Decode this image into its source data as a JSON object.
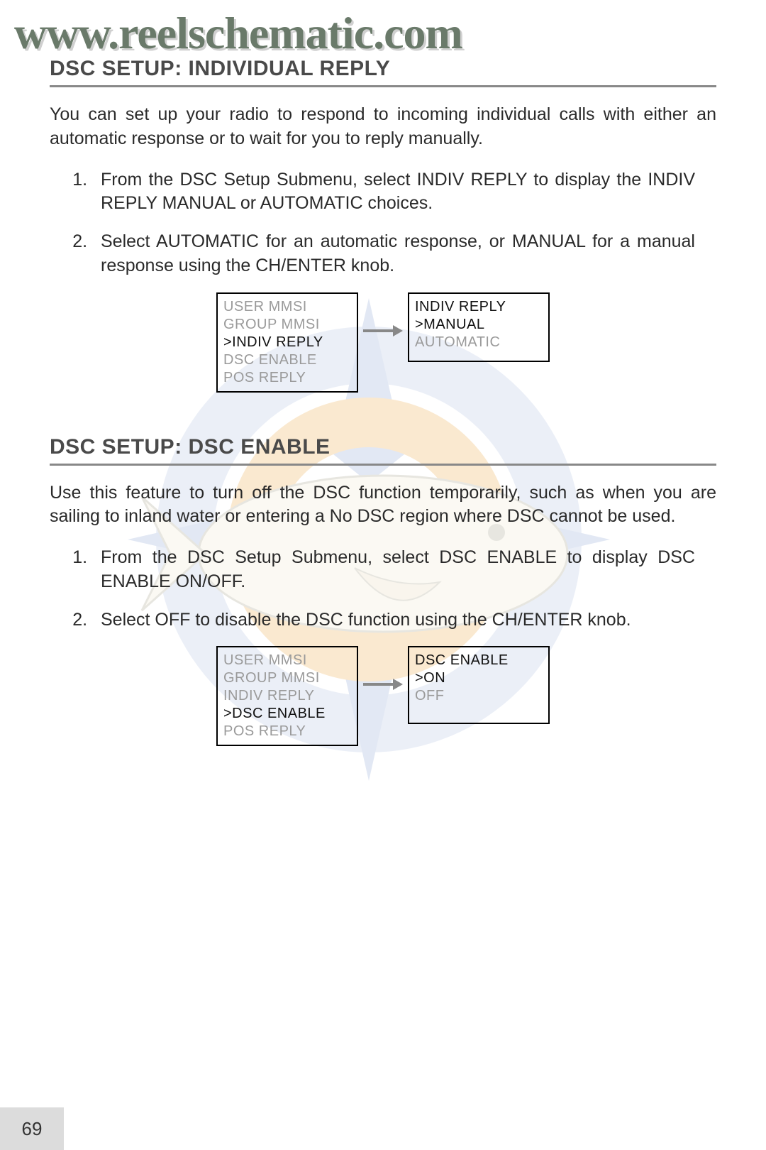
{
  "watermark_url": "www.reelschematic.com",
  "page_number": "69",
  "section1": {
    "title": "DSC SETUP: INDIVIDUAL REPLY",
    "intro": "You can set up your radio to respond to incoming individual calls with either an automatic response or to wait for you to reply manually.",
    "steps": [
      "From the DSC Setup Submenu, select INDIV REPLY to display the INDIV REPLY MANUAL or AUTOMATIC choices.",
      "Select AUTOMATIC for an automatic response, or MANUAL for a manual response using the CH/ENTER knob."
    ],
    "diagram": {
      "left": {
        "items": [
          {
            "text": "USER MMSI",
            "selected": false
          },
          {
            "text": "GROUP MMSI",
            "selected": false
          },
          {
            "text": ">INDIV REPLY",
            "selected": true
          },
          {
            "text": "DSC ENABLE",
            "selected": false
          },
          {
            "text": "POS REPLY",
            "selected": false
          }
        ]
      },
      "right": {
        "items": [
          {
            "text": "INDIV REPLY",
            "selected": true
          },
          {
            "text": ">MANUAL",
            "selected": true
          },
          {
            "text": "AUTOMATIC",
            "selected": false
          }
        ]
      }
    }
  },
  "section2": {
    "title": "DSC SETUP: DSC ENABLE",
    "intro": "Use this feature to turn off the DSC function temporarily, such as when you are sailing to inland water or entering a No DSC region where DSC cannot be used.",
    "steps": [
      "From the DSC Setup Submenu, select DSC ENABLE to display DSC ENABLE ON/OFF.",
      "Select OFF to disable the DSC function using the CH/ENTER knob."
    ],
    "diagram": {
      "left": {
        "items": [
          {
            "text": "USER MMSI",
            "selected": false
          },
          {
            "text": "GROUP MMSI",
            "selected": false
          },
          {
            "text": "INDIV REPLY",
            "selected": false
          },
          {
            "text": ">DSC ENABLE",
            "selected": true
          },
          {
            "text": "POS REPLY",
            "selected": false
          }
        ]
      },
      "right": {
        "items": [
          {
            "text": "DSC ENABLE",
            "selected": true
          },
          {
            "text": ">ON",
            "selected": true
          },
          {
            "text": "OFF",
            "selected": false
          }
        ]
      }
    }
  },
  "colors": {
    "grey_text": "#9a9a9a",
    "black_text": "#111111",
    "title_text": "#4a4a4a",
    "hr": "#888888",
    "bg_blue": "#b9c7e3",
    "bg_orange": "#f5c994",
    "bg_cream": "#f6ecd8"
  }
}
